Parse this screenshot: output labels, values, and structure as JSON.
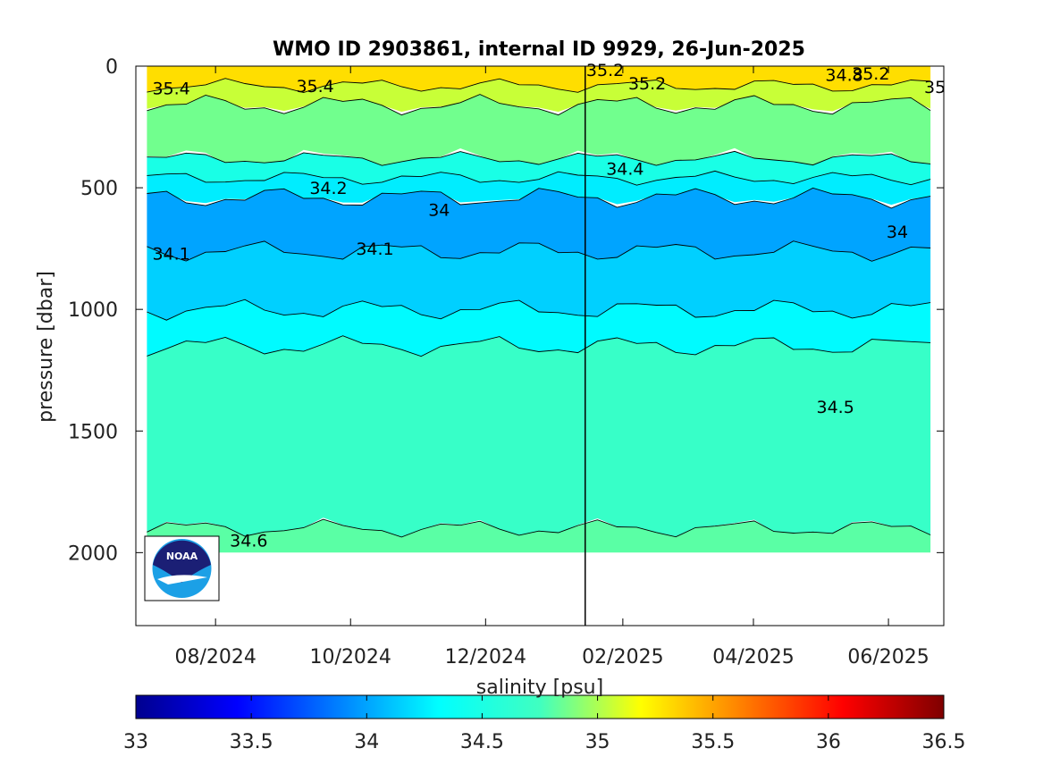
{
  "chart_data": {
    "type": "heatmap",
    "title": "WMO ID 2903861, internal ID 9929, 26-Jun-2025",
    "xlabel": "",
    "ylabel": "pressure [dbar]",
    "x_tick_labels": [
      "08/2024",
      "10/2024",
      "12/2024",
      "02/2025",
      "04/2025",
      "06/2025"
    ],
    "x_range": [
      "2024-06-26",
      "2025-06-26"
    ],
    "y_tick_labels": [
      "0",
      "500",
      "1000",
      "1500",
      "2000"
    ],
    "y_ticks": [
      0,
      500,
      1000,
      1500,
      2000
    ],
    "ylim": [
      0,
      2300
    ],
    "y_reversed": true,
    "vertical_marker_date": "2025-01-15",
    "colorbar": {
      "label": "salinity [psu]",
      "range": [
        33,
        36.5
      ],
      "tick_labels": [
        "33",
        "33.5",
        "34",
        "34.5",
        "35",
        "35.5",
        "36",
        "36.5"
      ],
      "colormap": "jet"
    },
    "profile_x_range": [
      "2024-07-01",
      "2025-06-20"
    ],
    "salinity_layers": [
      {
        "top": 0,
        "bottom": 80,
        "salinity": 35.3
      },
      {
        "top": 80,
        "bottom": 160,
        "salinity": 35.0
      },
      {
        "top": 160,
        "bottom": 380,
        "salinity": 34.7
      },
      {
        "top": 380,
        "bottom": 460,
        "salinity": 34.4
      },
      {
        "top": 460,
        "bottom": 540,
        "salinity": 34.25
      },
      {
        "top": 540,
        "bottom": 760,
        "salinity": 34.0
      },
      {
        "top": 760,
        "bottom": 1000,
        "salinity": 34.15
      },
      {
        "top": 1000,
        "bottom": 1150,
        "salinity": 34.3
      },
      {
        "top": 1150,
        "bottom": 1900,
        "salinity": 34.5
      },
      {
        "top": 1900,
        "bottom": 2000,
        "salinity": 34.62
      }
    ],
    "contour_labels": [
      {
        "text": "35.4",
        "date": "2024-07-12",
        "pressure": 90
      },
      {
        "text": "35.4",
        "date": "2024-09-15",
        "pressure": 80
      },
      {
        "text": "35.2",
        "date": "2025-01-24",
        "pressure": 15
      },
      {
        "text": "35.2",
        "date": "2025-02-12",
        "pressure": 70
      },
      {
        "text": "35.2",
        "date": "2025-05-24",
        "pressure": 30
      },
      {
        "text": "34.8",
        "date": "2025-05-12",
        "pressure": 35
      },
      {
        "text": "35",
        "date": "2025-06-22",
        "pressure": 85
      },
      {
        "text": "34.4",
        "date": "2025-02-02",
        "pressure": 420
      },
      {
        "text": "34.2",
        "date": "2024-09-21",
        "pressure": 500
      },
      {
        "text": "34",
        "date": "2024-11-10",
        "pressure": 590
      },
      {
        "text": "34",
        "date": "2025-06-05",
        "pressure": 680
      },
      {
        "text": "34.1",
        "date": "2024-07-12",
        "pressure": 770
      },
      {
        "text": "34.1",
        "date": "2024-10-12",
        "pressure": 750
      },
      {
        "text": "34.5",
        "date": "2025-05-08",
        "pressure": 1400
      },
      {
        "text": "34.6",
        "date": "2024-08-16",
        "pressure": 1950
      }
    ],
    "logo": "noaa-logo"
  }
}
